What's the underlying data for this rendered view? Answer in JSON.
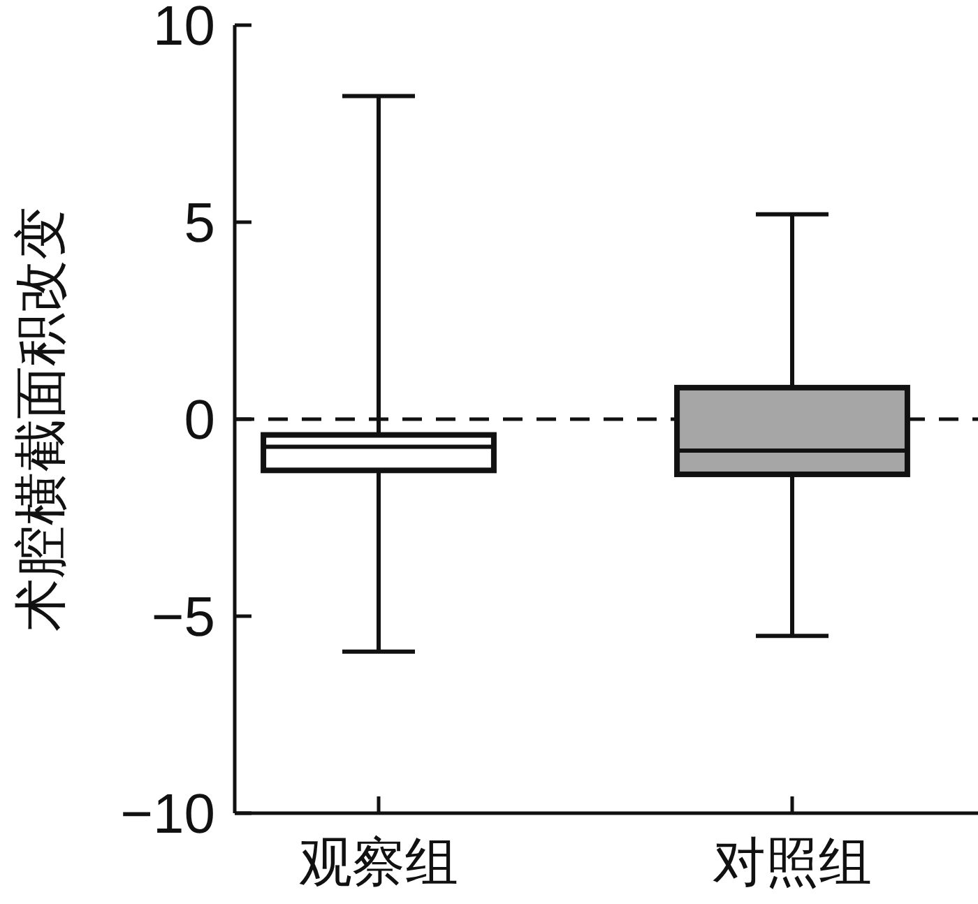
{
  "chart_data": {
    "type": "box",
    "ylabel": "术腔横截面积改变",
    "categories": [
      "观察组",
      "对照组"
    ],
    "boxes": [
      {
        "low": -5.9,
        "q1": -1.3,
        "median": -0.7,
        "q3": -0.4,
        "high": 8.2
      },
      {
        "low": -5.5,
        "q1": -1.4,
        "median": -0.8,
        "q3": 0.8,
        "high": 5.2
      }
    ],
    "colors": [
      "#ffffff",
      "#a6a6a6"
    ],
    "ylim": [
      -10,
      10
    ],
    "yticks": [
      -10,
      -5,
      0,
      5,
      10
    ],
    "ref_lines": [
      {
        "axis": "y",
        "value": 0,
        "line_style": "dashed"
      }
    ]
  }
}
